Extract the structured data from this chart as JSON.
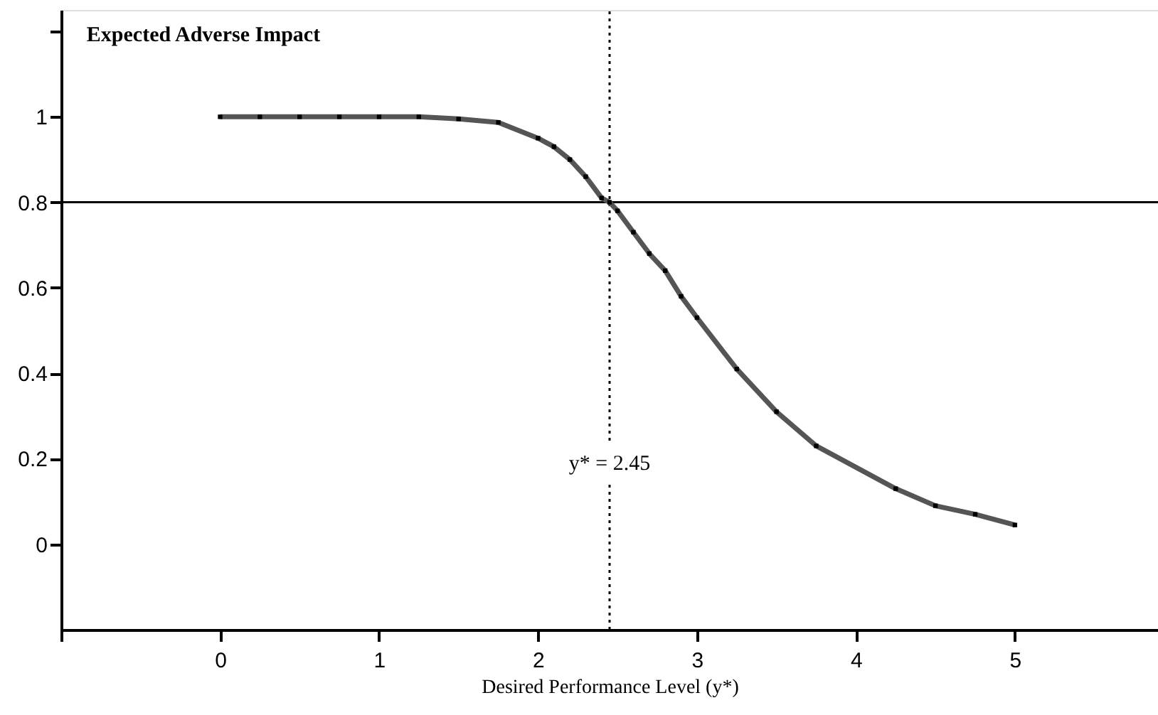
{
  "chart_data": {
    "type": "line",
    "ylabel": "Expected Adverse Impact",
    "xlabel": "Desired Performance Level (y*)",
    "x": [
      0,
      0.25,
      0.5,
      0.75,
      1,
      1.25,
      1.5,
      1.75,
      2,
      2.1,
      2.2,
      2.3,
      2.4,
      2.45,
      2.5,
      2.6,
      2.7,
      2.8,
      2.9,
      3,
      3.25,
      3.5,
      3.75,
      4.25,
      4.5,
      4.75,
      5
    ],
    "series": [
      {
        "color": "#555555",
        "values": [
          1.0,
          1.0,
          1.0,
          1.0,
          1.0,
          1.0,
          0.995,
          0.987,
          0.95,
          0.93,
          0.9,
          0.86,
          0.81,
          0.8,
          0.78,
          0.73,
          0.68,
          0.64,
          0.58,
          0.53,
          0.41,
          0.31,
          0.23,
          0.13,
          0.09,
          0.07,
          0.045
        ]
      }
    ],
    "xlim": [
      -1,
      5.9
    ],
    "xticks": [
      {
        "value": -1,
        "label": null
      },
      0,
      1,
      2,
      3,
      4,
      5
    ],
    "ylim": [
      -0.2,
      1.25
    ],
    "yticks": [
      0,
      0.2,
      0.4,
      0.6,
      0.8,
      1,
      {
        "value": 1.2,
        "label": null
      }
    ],
    "ref_lines": [
      {
        "axis": "y",
        "value": 0.8,
        "line_style": "solid",
        "color": "#000000"
      },
      {
        "axis": "x",
        "value": 2.45,
        "label": "y* = 2.45",
        "line_style": "dotted",
        "color": "#000000"
      }
    ],
    "marker": "square",
    "line_style": "solid",
    "grid": false
  }
}
